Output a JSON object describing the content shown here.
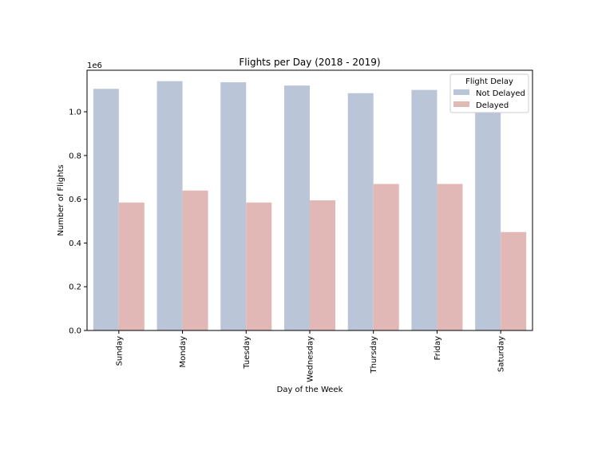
{
  "chart_data": {
    "type": "bar",
    "title": "Flights per Day (2018 - 2019)",
    "xlabel": "Day of the Week",
    "ylabel": "Number of Flights",
    "y_offset_text": "1e6",
    "ylim": [
      0,
      1.19
    ],
    "yticks": [
      "0.0",
      "0.2",
      "0.4",
      "0.6",
      "0.8",
      "1.0"
    ],
    "ytick_values": [
      0,
      0.2,
      0.4,
      0.6,
      0.8,
      1.0
    ],
    "grid": false,
    "categories": [
      "Sunday",
      "Monday",
      "Tuesday",
      "Wednesday",
      "Thursday",
      "Friday",
      "Saturday"
    ],
    "legend": {
      "title": "Flight Delay",
      "placement": "top-right"
    },
    "series": [
      {
        "name": "Not Delayed",
        "color": "#bac5d8",
        "values": [
          1.105,
          1.14,
          1.135,
          1.12,
          1.085,
          1.1,
          0.995
        ]
      },
      {
        "name": "Delayed",
        "color": "#e1b8b6",
        "values": [
          0.585,
          0.64,
          0.585,
          0.595,
          0.67,
          0.67,
          0.45
        ]
      }
    ]
  }
}
